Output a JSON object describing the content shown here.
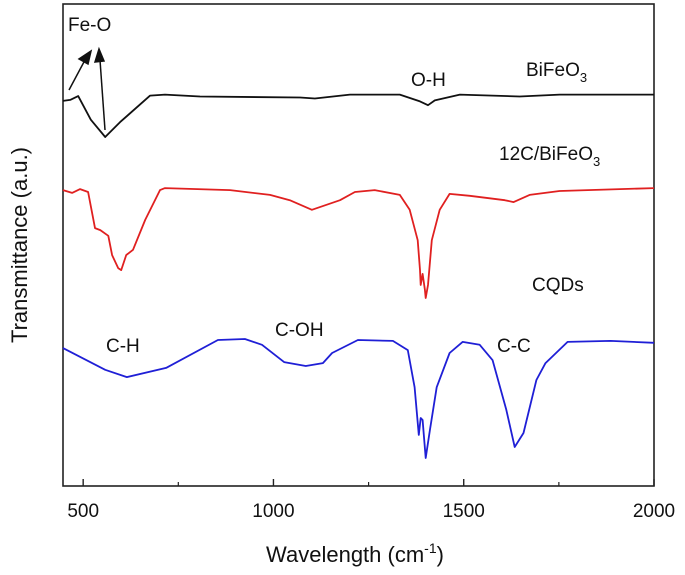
{
  "chart_data": {
    "type": "line",
    "xlabel": "Wavelength (cm",
    "xlabel_sup": "-1",
    "xlabel_end": ")",
    "ylabel": "Transmittance (a.u.)",
    "xlim": [
      447,
      2000
    ],
    "ylim": [
      0,
      100
    ],
    "x_ticks": [
      500,
      1000,
      1500,
      2000
    ],
    "x_minor_ticks": [
      750,
      1250,
      1750
    ],
    "grid": false,
    "y_ticks_shown": false,
    "series": [
      {
        "name": "BiFeO3",
        "label_main": "BiFeO",
        "label_sub": "3",
        "color": "#111111",
        "x": [
          447,
          466,
          487,
          520,
          558,
          597,
          676,
          715,
          807,
          1070,
          1109,
          1201,
          1332,
          1385,
          1406,
          1424,
          1490,
          1647,
          1752,
          2000
        ],
        "y": [
          79.9,
          80.1,
          80.9,
          76.0,
          72.4,
          75.5,
          81.0,
          81.2,
          80.8,
          80.6,
          80.4,
          81.2,
          81.2,
          79.8,
          79.0,
          80.0,
          81.2,
          80.8,
          81.2,
          81.2
        ]
      },
      {
        "name": "12C/BiFeO3",
        "label_main": "12C/BiFeO",
        "label_sub": "3",
        "color": "#e02020",
        "x": [
          447,
          471,
          492,
          513,
          531,
          545,
          566,
          576,
          592,
          600,
          613,
          631,
          663,
          702,
          715,
          886,
          991,
          1043,
          1101,
          1175,
          1214,
          1266,
          1332,
          1358,
          1379,
          1385,
          1387,
          1392,
          1398,
          1400,
          1406,
          1416,
          1437,
          1463,
          1516,
          1608,
          1631,
          1673,
          1752,
          2000
        ],
        "y": [
          61.4,
          60.8,
          61.6,
          61.0,
          53.5,
          53.1,
          51.9,
          47.9,
          45.2,
          44.8,
          47.9,
          49.0,
          55.2,
          61.4,
          61.8,
          61.4,
          60.4,
          59.3,
          57.3,
          59.3,
          61.0,
          61.4,
          60.4,
          57.3,
          51.0,
          44.8,
          41.7,
          44.0,
          40.7,
          39.0,
          41.7,
          51.0,
          57.3,
          60.6,
          60.2,
          59.3,
          58.9,
          60.4,
          61.2,
          61.8
        ]
      },
      {
        "name": "CQDs",
        "label_main": "CQDs",
        "label_sub": "",
        "color": "#1f1fd6",
        "x": [
          447,
          558,
          615,
          718,
          854,
          925,
          970,
          1028,
          1085,
          1130,
          1154,
          1222,
          1314,
          1353,
          1371,
          1382,
          1387,
          1392,
          1400,
          1411,
          1429,
          1463,
          1497,
          1542,
          1576,
          1612,
          1634,
          1657,
          1691,
          1715,
          1773,
          1886,
          2000
        ],
        "y": [
          28.6,
          24.1,
          22.6,
          24.5,
          30.3,
          30.5,
          29.3,
          25.7,
          24.9,
          25.5,
          27.6,
          30.3,
          30.1,
          28.2,
          20.5,
          10.6,
          14.1,
          13.7,
          5.8,
          11.6,
          20.5,
          27.6,
          29.9,
          29.3,
          26.1,
          15.8,
          8.1,
          11.0,
          22.0,
          25.5,
          29.9,
          30.1,
          29.7
        ]
      }
    ],
    "annotations": {
      "fe_o": "Fe-O",
      "o_h": "O-H",
      "c_h": "C-H",
      "c_oh": "C-OH",
      "c_c": "C-C"
    }
  }
}
